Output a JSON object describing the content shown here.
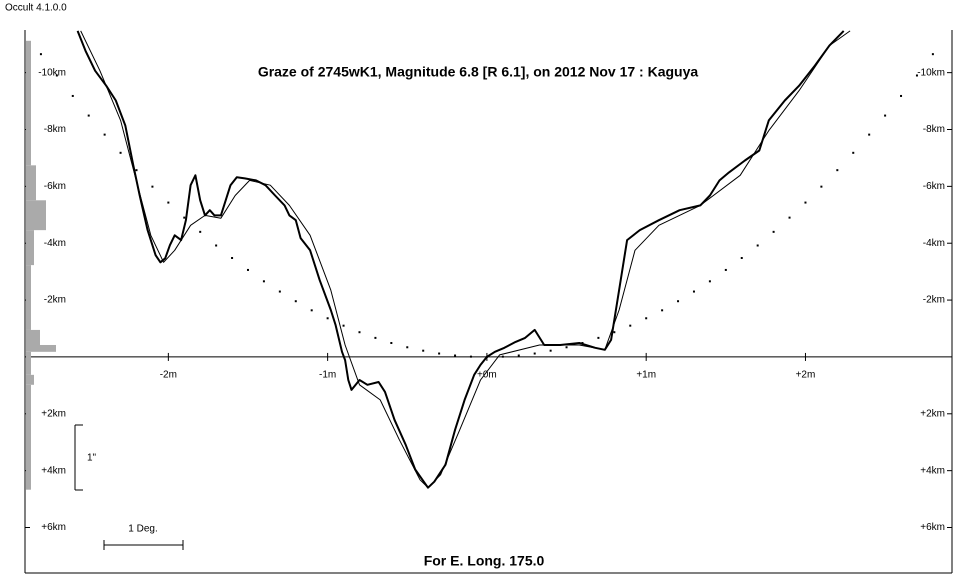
{
  "app_label": "Occult 4.1.0.0",
  "chart_data": {
    "type": "line",
    "title": "Graze of  2745wK1,  Magnitude 6.8 [R 6.1],  on 2012 Nov 17  :  Kaguya",
    "footer": "For E. Long. 175.0",
    "scale_labels": {
      "degree": "1 Deg.",
      "arcsec": "1\""
    },
    "xlim": [
      -2.9,
      2.92
    ],
    "ylim": [
      7.6,
      -11.5
    ],
    "xticks": [
      {
        "value": -2,
        "label": "-2m"
      },
      {
        "value": -1,
        "label": "-1m"
      },
      {
        "value": 0,
        "label": "+0m"
      },
      {
        "value": 1,
        "label": "+1m"
      },
      {
        "value": 2,
        "label": "+2m"
      }
    ],
    "yticks": [
      {
        "value": -10,
        "label": "-10km"
      },
      {
        "value": -8,
        "label": "-8km"
      },
      {
        "value": -6,
        "label": "-6km"
      },
      {
        "value": -4,
        "label": "-4km"
      },
      {
        "value": -2,
        "label": "-2km"
      },
      {
        "value": 2,
        "label": "+2km"
      },
      {
        "value": 4,
        "label": "+4km"
      },
      {
        "value": 6,
        "label": "+6km"
      }
    ],
    "series": [
      {
        "color": "#000000",
        "line_width": 2,
        "x": [
          -2.57,
          -2.52,
          -2.46,
          -2.39,
          -2.33,
          -2.27,
          -2.22,
          -2.18,
          -2.13,
          -2.08,
          -2.05,
          -2.02,
          -1.99,
          -1.96,
          -1.92,
          -1.89,
          -1.86,
          -1.83,
          -1.8,
          -1.77,
          -1.74,
          -1.71,
          -1.67,
          -1.64,
          -1.61,
          -1.57,
          -1.52,
          -1.45,
          -1.39,
          -1.33,
          -1.27,
          -1.24,
          -1.2,
          -1.17,
          -1.11,
          -1.05,
          -0.98,
          -0.95,
          -0.91,
          -0.89,
          -0.87,
          -0.85,
          -0.8,
          -0.75,
          -0.68,
          -0.64,
          -0.58,
          -0.51,
          -0.45,
          -0.37,
          -0.33,
          -0.26,
          -0.2,
          -0.14,
          -0.08,
          -0.04,
          0,
          0.05,
          0.11,
          0.18,
          0.24,
          0.3,
          0.36,
          0.46,
          0.58,
          0.68,
          0.74,
          0.78,
          0.83,
          0.88,
          0.96,
          1.08,
          1.21,
          1.34,
          1.4,
          1.46,
          1.52,
          1.62,
          1.71,
          1.77,
          1.87,
          1.96,
          2.06,
          2.15,
          2.24
        ],
        "values": [
          -11.47,
          -10.77,
          -10.07,
          -9.54,
          -9.02,
          -8.14,
          -6.74,
          -5.68,
          -4.46,
          -3.58,
          -3.33,
          -3.47,
          -3.93,
          -4.28,
          -4.11,
          -4.81,
          -6.04,
          -6.39,
          -5.51,
          -4.98,
          -5.16,
          -4.98,
          -4.98,
          -5.51,
          -6.04,
          -6.32,
          -6.28,
          -6.21,
          -6.04,
          -5.68,
          -5.33,
          -4.98,
          -4.81,
          -4.18,
          -3.75,
          -2.7,
          -1.65,
          -1.12,
          -0.18,
          0.11,
          0.81,
          1.16,
          0.81,
          0.98,
          0.88,
          1.23,
          2.21,
          3.09,
          3.96,
          4.6,
          4.39,
          3.79,
          2.56,
          1.51,
          0.63,
          0.28,
          0,
          -0.18,
          -0.32,
          -0.53,
          -0.67,
          -0.95,
          -0.42,
          -0.42,
          -0.49,
          -0.32,
          -0.25,
          -0.6,
          -2.35,
          -4.11,
          -4.46,
          -4.81,
          -5.16,
          -5.33,
          -5.68,
          -6.21,
          -6.49,
          -6.91,
          -7.26,
          -8.32,
          -9.02,
          -9.54,
          -10.25,
          -10.95,
          -11.47
        ]
      },
      {
        "color": "#000000",
        "line_width": 1,
        "x": [
          -2.55,
          -2.43,
          -2.3,
          -2.21,
          -2.11,
          -2.03,
          -1.96,
          -1.86,
          -1.77,
          -1.67,
          -1.58,
          -1.49,
          -1.36,
          -1.24,
          -1.11,
          -0.98,
          -0.89,
          -0.8,
          -0.67,
          -0.55,
          -0.42,
          -0.37,
          -0.29,
          -0.17,
          -0.04,
          0.08,
          0.33,
          0.58,
          0.74,
          0.83,
          0.93,
          1.08,
          1.34,
          1.59,
          1.77,
          1.96,
          2.15,
          2.28
        ],
        "values": [
          -11.47,
          -10.07,
          -8.32,
          -6.39,
          -4.28,
          -3.33,
          -3.75,
          -4.63,
          -4.98,
          -4.88,
          -5.68,
          -6.21,
          -6.04,
          -5.33,
          -4.28,
          -2.35,
          -0.42,
          0.98,
          1.51,
          2.91,
          4.32,
          4.6,
          4.14,
          2.56,
          0.81,
          -0.07,
          -0.42,
          -0.42,
          -0.25,
          -1.65,
          -3.75,
          -4.63,
          -5.33,
          -6.39,
          -7.96,
          -9.37,
          -10.95,
          -11.47
        ]
      },
      {
        "color": "#000000",
        "marker": "dot",
        "x": [
          -2.8,
          -2.7,
          -2.6,
          -2.5,
          -2.4,
          -2.3,
          -2.2,
          -2.1,
          -2.0,
          -1.9,
          -1.8,
          -1.7,
          -1.6,
          -1.5,
          -1.4,
          -1.3,
          -1.2,
          -1.1,
          -1.0,
          -0.9,
          -0.8,
          -0.7,
          -0.6,
          -0.5,
          -0.4,
          -0.3,
          -0.2,
          -0.1,
          0,
          0.1,
          0.2,
          0.3,
          0.4,
          0.5,
          0.6,
          0.7,
          0.8,
          0.9,
          1.0,
          1.1,
          1.2,
          1.3,
          1.4,
          1.5,
          1.6,
          1.7,
          1.8,
          1.9,
          2.0,
          2.1,
          2.2,
          2.3,
          2.4,
          2.5,
          2.6,
          2.7,
          2.8
        ],
        "values": [
          -10.65,
          -9.9,
          -9.18,
          -8.49,
          -7.82,
          -7.18,
          -6.57,
          -5.99,
          -5.43,
          -4.9,
          -4.4,
          -3.92,
          -3.48,
          -3.06,
          -2.66,
          -2.3,
          -1.96,
          -1.64,
          -1.36,
          -1.1,
          -0.87,
          -0.67,
          -0.49,
          -0.34,
          -0.22,
          -0.12,
          -0.05,
          -0.01,
          0,
          -0.01,
          -0.05,
          -0.12,
          -0.22,
          -0.34,
          -0.49,
          -0.67,
          -0.87,
          -1.1,
          -1.36,
          -1.64,
          -1.96,
          -2.3,
          -2.66,
          -3.06,
          -3.48,
          -3.92,
          -4.4,
          -4.9,
          -5.43,
          -5.99,
          -6.57,
          -7.18,
          -7.82,
          -8.49,
          -9.18,
          -9.9,
          -10.65
        ]
      }
    ],
    "histogram": {
      "color": "#aaaaaa",
      "bins": [
        -11.12,
        -6.74,
        -5.51,
        -4.46,
        -3.23,
        -0.95,
        -0.42,
        -0.18,
        0.63,
        0.98,
        4.67
      ],
      "counts": [
        5,
        10,
        20,
        8,
        5,
        14,
        30,
        5,
        8,
        5
      ]
    }
  }
}
